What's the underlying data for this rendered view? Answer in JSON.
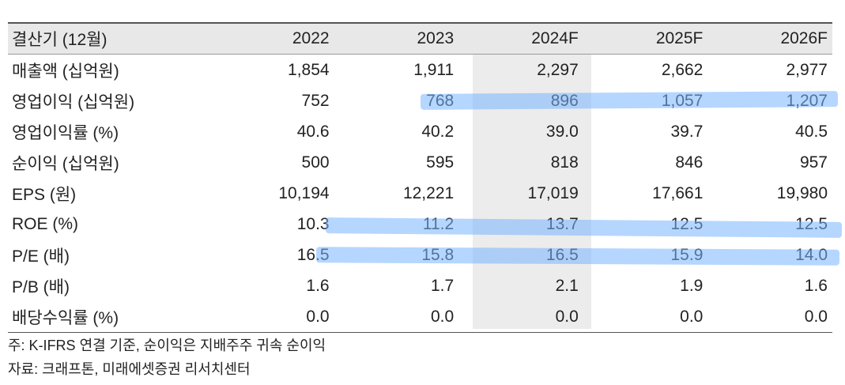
{
  "table": {
    "header": [
      "결산기 (12월)",
      "2022",
      "2023",
      "2024F",
      "2025F",
      "2026F"
    ],
    "rows": [
      {
        "label": "매출액 (십억원)",
        "values": [
          "1,854",
          "1,911",
          "2,297",
          "2,662",
          "2,977"
        ]
      },
      {
        "label": "영업이익 (십억원)",
        "values": [
          "752",
          "768",
          "896",
          "1,057",
          "1,207"
        ]
      },
      {
        "label": "영업이익률 (%)",
        "values": [
          "40.6",
          "40.2",
          "39.0",
          "39.7",
          "40.5"
        ]
      },
      {
        "label": "순이익 (십억원)",
        "values": [
          "500",
          "595",
          "818",
          "846",
          "957"
        ]
      },
      {
        "label": "EPS (원)",
        "values": [
          "10,194",
          "12,221",
          "17,019",
          "17,661",
          "19,980"
        ]
      },
      {
        "label": "ROE (%)",
        "values": [
          "10.3",
          "11.2",
          "13.7",
          "12.5",
          "12.5"
        ]
      },
      {
        "label": "P/E (배)",
        "values": [
          "16.5",
          "15.8",
          "16.5",
          "15.9",
          "14.0"
        ]
      },
      {
        "label": "P/B (배)",
        "values": [
          "1.6",
          "1.7",
          "2.1",
          "1.9",
          "1.6"
        ]
      },
      {
        "label": "배당수익률 (%)",
        "values": [
          "0.0",
          "0.0",
          "0.0",
          "0.0",
          "0.0"
        ]
      }
    ]
  },
  "notes": {
    "note": "주: K-IFRS 연결 기준, 순이익은 지배주주 귀속 순이익",
    "source": "자료: 크래프톤, 미래에셋증권 리서치센터"
  },
  "colors": {
    "highlight_marker": "#78b4ff",
    "forecast_column_bg": "#ececec",
    "header_bg": "#e8e8e8"
  }
}
